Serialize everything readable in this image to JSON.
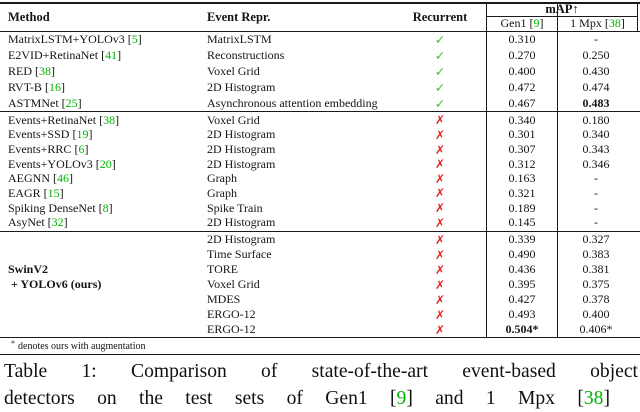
{
  "palette": {
    "cite_green": "#00b400",
    "check_green": "#35c435",
    "cross_red": "#e2251c",
    "ink": "#141414"
  },
  "table": {
    "cite_open": " [",
    "cite_close": "]",
    "marks": {
      "check_glyph": "✓",
      "cross_glyph": "✗"
    },
    "header": {
      "method": "Method",
      "event_repr": "Event Repr.",
      "recurrent": "Recurrent",
      "map": "mAP↑",
      "gen1_label": "Gen1",
      "gen1_cite": "9",
      "mpx_label": "1 Mpx",
      "mpx_cite": "38"
    },
    "groups": [
      {
        "rows": [
          {
            "method": "MatrixLSTM+YOLOv3",
            "cite": "5",
            "method_bold": false,
            "repr": "MatrixLSTM",
            "recurrent": true,
            "gen1": {
              "v": "0.310",
              "b": false
            },
            "mpx": {
              "v": "-",
              "b": false
            }
          },
          {
            "method": "E2VID+RetinaNet",
            "cite": "41",
            "method_bold": false,
            "repr": "Reconstructions",
            "recurrent": true,
            "gen1": {
              "v": "0.270",
              "b": false
            },
            "mpx": {
              "v": "0.250",
              "b": false
            }
          },
          {
            "method": "RED",
            "cite": "38",
            "method_bold": false,
            "repr": "Voxel Grid",
            "recurrent": true,
            "gen1": {
              "v": "0.400",
              "b": false
            },
            "mpx": {
              "v": "0.430",
              "b": false
            }
          },
          {
            "method": "RVT-B",
            "cite": "16",
            "method_bold": false,
            "repr": "2D Histogram",
            "recurrent": true,
            "gen1": {
              "v": "0.472",
              "b": false
            },
            "mpx": {
              "v": "0.474",
              "b": false
            }
          },
          {
            "method": "ASTMNet",
            "cite": "25",
            "method_bold": false,
            "repr": "Asynchronous attention embedding",
            "recurrent": true,
            "gen1": {
              "v": "0.467",
              "b": false
            },
            "mpx": {
              "v": "0.483",
              "b": true
            }
          }
        ]
      },
      {
        "rows": [
          {
            "method": "Events+RetinaNet",
            "cite": "38",
            "method_bold": false,
            "repr": "Voxel Grid",
            "recurrent": false,
            "gen1": {
              "v": "0.340",
              "b": false
            },
            "mpx": {
              "v": "0.180",
              "b": false
            }
          },
          {
            "method": "Events+SSD",
            "cite": "19",
            "method_bold": false,
            "repr": "2D Histogram",
            "recurrent": false,
            "gen1": {
              "v": "0.301",
              "b": false
            },
            "mpx": {
              "v": "0.340",
              "b": false
            }
          },
          {
            "method": "Events+RRC",
            "cite": "6",
            "method_bold": false,
            "repr": "2D Histogram",
            "recurrent": false,
            "gen1": {
              "v": "0.307",
              "b": false
            },
            "mpx": {
              "v": "0.343",
              "b": false
            }
          },
          {
            "method": "Events+YOLOv3",
            "cite": "20",
            "method_bold": false,
            "repr": "2D Histogram",
            "recurrent": false,
            "gen1": {
              "v": "0.312",
              "b": false
            },
            "mpx": {
              "v": "0.346",
              "b": false
            }
          },
          {
            "method": "AEGNN",
            "cite": "46",
            "method_bold": false,
            "repr": "Graph",
            "recurrent": false,
            "gen1": {
              "v": "0.163",
              "b": false
            },
            "mpx": {
              "v": "-",
              "b": false
            }
          },
          {
            "method": "EAGR",
            "cite": "15",
            "method_bold": false,
            "repr": "Graph",
            "recurrent": false,
            "gen1": {
              "v": "0.321",
              "b": false
            },
            "mpx": {
              "v": "-",
              "b": false
            }
          },
          {
            "method": "Spiking DenseNet",
            "cite": "8",
            "method_bold": false,
            "repr": "Spike Train",
            "recurrent": false,
            "gen1": {
              "v": "0.189",
              "b": false
            },
            "mpx": {
              "v": "-",
              "b": false
            }
          },
          {
            "method": "AsyNet",
            "cite": "32",
            "method_bold": false,
            "repr": "2D Histogram",
            "recurrent": false,
            "gen1": {
              "v": "0.145",
              "b": false
            },
            "mpx": {
              "v": "-",
              "b": false
            }
          }
        ]
      },
      {
        "rows": [
          {
            "method": "",
            "cite": null,
            "method_bold": false,
            "repr": "2D Histogram",
            "recurrent": false,
            "gen1": {
              "v": "0.339",
              "b": false
            },
            "mpx": {
              "v": "0.327",
              "b": false
            }
          },
          {
            "method": "",
            "cite": null,
            "method_bold": false,
            "repr": "Time Surface",
            "recurrent": false,
            "gen1": {
              "v": "0.490",
              "b": false
            },
            "mpx": {
              "v": "0.383",
              "b": false
            }
          },
          {
            "method": "SwinV2",
            "cite": null,
            "method_bold": true,
            "repr": "TORE",
            "recurrent": false,
            "gen1": {
              "v": "0.436",
              "b": false
            },
            "mpx": {
              "v": "0.381",
              "b": false
            }
          },
          {
            "method": " + YOLOv6 (ours)",
            "cite": null,
            "method_bold": true,
            "repr": "Voxel Grid",
            "recurrent": false,
            "gen1": {
              "v": "0.395",
              "b": false
            },
            "mpx": {
              "v": "0.375",
              "b": false
            }
          },
          {
            "method": "",
            "cite": null,
            "method_bold": false,
            "repr": "MDES",
            "recurrent": false,
            "gen1": {
              "v": "0.427",
              "b": false
            },
            "mpx": {
              "v": "0.378",
              "b": false
            }
          },
          {
            "method": "",
            "cite": null,
            "method_bold": false,
            "repr": "ERGO-12",
            "recurrent": false,
            "gen1": {
              "v": "0.493",
              "b": false
            },
            "mpx": {
              "v": "0.400",
              "b": false
            }
          },
          {
            "method": "",
            "cite": null,
            "method_bold": false,
            "repr": "ERGO-12",
            "recurrent": false,
            "gen1": {
              "v": "0.504*",
              "b": true
            },
            "mpx": {
              "v": "0.406*",
              "b": false
            }
          }
        ]
      }
    ],
    "footnote": {
      "marker": "*",
      "text": "denotes ours with augmentation"
    }
  },
  "caption": {
    "line1": "Table 1: Comparison of state-of-the-art event-based object",
    "line2": [
      {
        "t": "detectors on the test sets of Gen1 [",
        "cite": false
      },
      {
        "t": "9",
        "cite": true
      },
      {
        "t": "] and 1 Mpx [",
        "cite": false
      },
      {
        "t": "38",
        "cite": true
      },
      {
        "t": "]",
        "cite": false
      }
    ]
  }
}
